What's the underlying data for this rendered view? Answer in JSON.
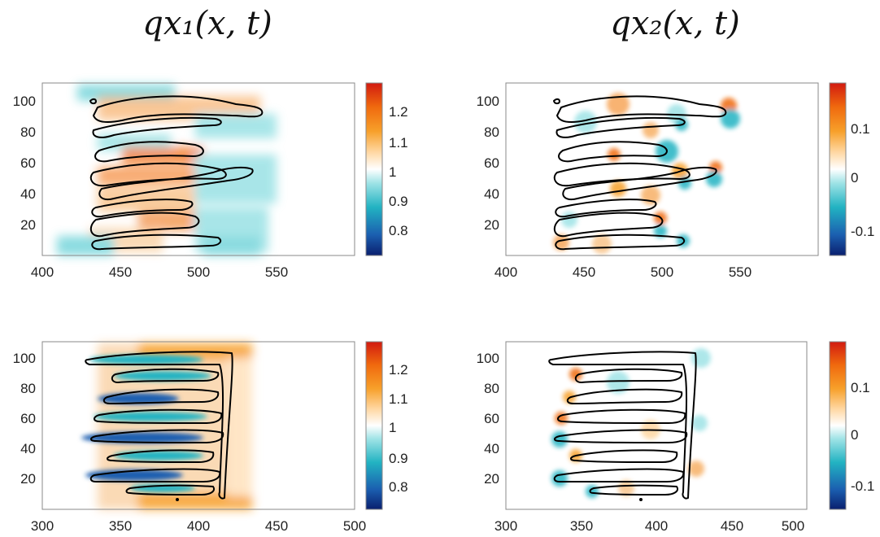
{
  "titles": {
    "left": "q_{x_1}(\\mathbf{x}, t)",
    "right": "q_{x_2}(\\mathbf{x}, t)",
    "left_display": "qx₁(x, t)",
    "right_display": "qx₂(x, t)"
  },
  "colors": {
    "colormap": [
      "#0a1f6e",
      "#1b5fb0",
      "#22b3c2",
      "#9fe3e6",
      "#ffffff",
      "#ffd7a1",
      "#f7a02a",
      "#f06a0e",
      "#d11a10"
    ]
  },
  "chart_data": [
    {
      "type": "heatmap",
      "id": "top-left",
      "title": "",
      "xlim": [
        400,
        600
      ],
      "ylim": [
        0,
        110
      ],
      "xticks": [
        "400",
        "450",
        "500",
        "550"
      ],
      "yticks": [
        "20",
        "40",
        "60",
        "80",
        "100"
      ],
      "colorbar": {
        "range": [
          0.73,
          1.28
        ],
        "ticks": [
          "0.8",
          "0.9",
          "1",
          "1.1",
          "1.2"
        ]
      }
    },
    {
      "type": "heatmap",
      "id": "top-right",
      "title": "",
      "xlim": [
        400,
        600
      ],
      "ylim": [
        0,
        110
      ],
      "xticks": [
        "400",
        "450",
        "500",
        "550"
      ],
      "yticks": [
        "20",
        "40",
        "60",
        "80",
        "100"
      ],
      "colorbar": {
        "range": [
          -0.15,
          0.18
        ],
        "ticks": [
          "-0.1",
          "0",
          "0.1"
        ]
      }
    },
    {
      "type": "heatmap",
      "id": "bottom-left",
      "title": "",
      "xlim": [
        300,
        500
      ],
      "ylim": [
        0,
        110
      ],
      "xticks": [
        "300",
        "350",
        "400",
        "450",
        "500"
      ],
      "yticks": [
        "20",
        "40",
        "60",
        "80",
        "100"
      ],
      "colorbar": {
        "range": [
          0.73,
          1.28
        ],
        "ticks": [
          "0.8",
          "0.9",
          "1",
          "1.1",
          "1.2"
        ]
      }
    },
    {
      "type": "heatmap",
      "id": "bottom-right",
      "title": "",
      "xlim": [
        300,
        500
      ],
      "ylim": [
        0,
        110
      ],
      "xticks": [
        "300",
        "350",
        "400",
        "450",
        "500"
      ],
      "yticks": [
        "20",
        "40",
        "60",
        "80",
        "100"
      ],
      "colorbar": {
        "range": [
          -0.15,
          0.18
        ],
        "ticks": [
          "-0.1",
          "0",
          "0.1"
        ]
      }
    }
  ]
}
